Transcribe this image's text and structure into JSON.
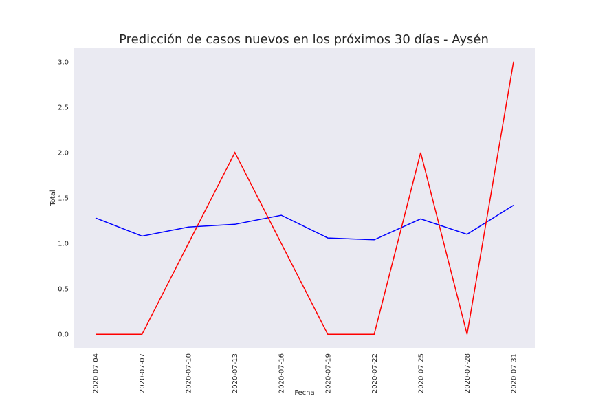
{
  "chart_data": {
    "type": "line",
    "title": "Predicción de casos nuevos en los próximos 30 días - Aysén",
    "xlabel": "Fecha",
    "ylabel": "Total",
    "x": [
      "2020-07-04",
      "2020-07-07",
      "2020-07-10",
      "2020-07-13",
      "2020-07-16",
      "2020-07-19",
      "2020-07-22",
      "2020-07-25",
      "2020-07-28",
      "2020-07-31"
    ],
    "x_ticks": [
      "2020-07-04",
      "2020-07-07",
      "2020-07-10",
      "2020-07-13",
      "2020-07-16",
      "2020-07-19",
      "2020-07-22",
      "2020-07-25",
      "2020-07-28",
      "2020-07-31"
    ],
    "y_ticks": [
      "0.0",
      "0.5",
      "1.0",
      "1.5",
      "2.0",
      "2.5",
      "3.0"
    ],
    "ylim": [
      -0.15,
      3.15
    ],
    "grid": false,
    "background": "#eaeaf2",
    "series": [
      {
        "color": "#0000ff",
        "values": [
          1.28,
          1.08,
          1.18,
          1.21,
          1.31,
          1.06,
          1.04,
          1.27,
          1.1,
          1.42
        ]
      },
      {
        "color": "#ff0000",
        "values": [
          0,
          0,
          1,
          2,
          1,
          0,
          0,
          2,
          0,
          3
        ]
      }
    ]
  }
}
